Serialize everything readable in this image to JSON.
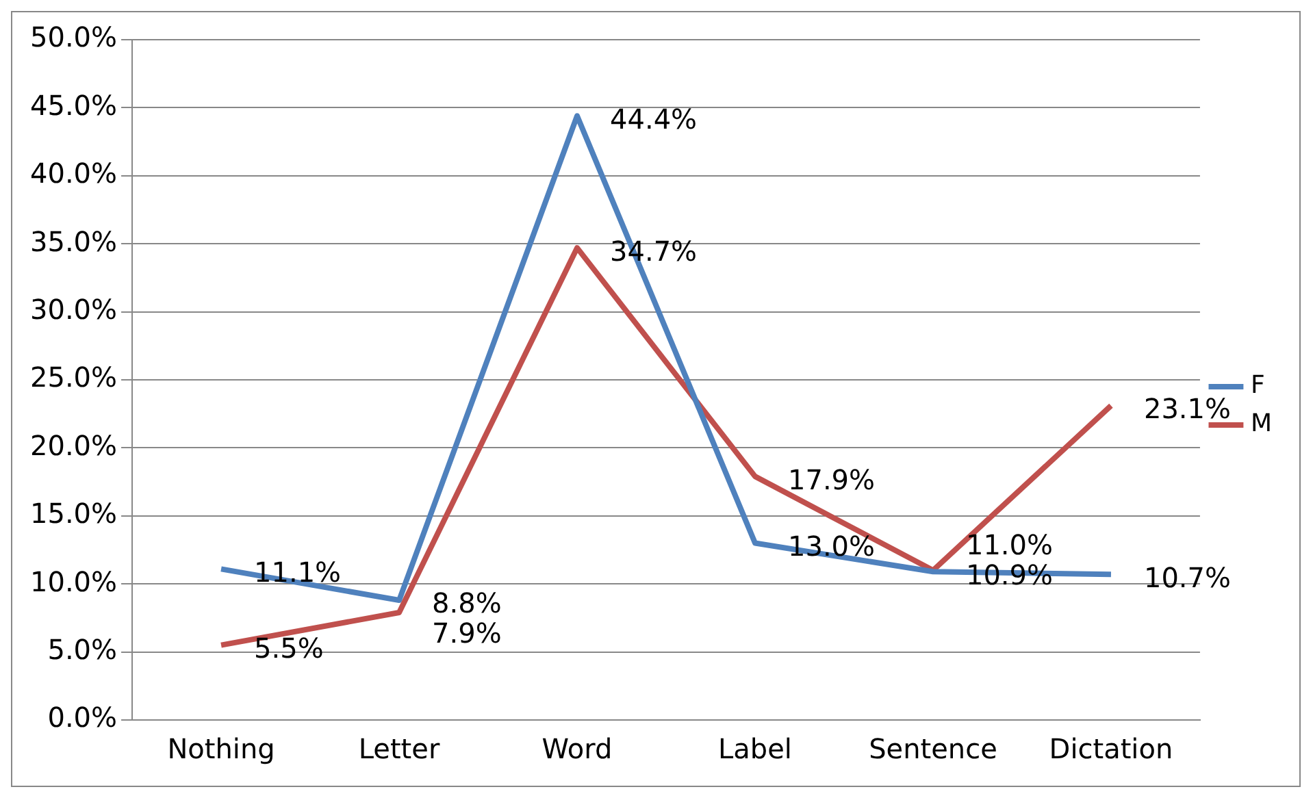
{
  "chart_data": {
    "type": "line",
    "categories": [
      "Nothing",
      "Letter",
      "Word",
      "Label",
      "Sentence",
      "Dictation"
    ],
    "series": [
      {
        "name": "F",
        "color": "#4f81bd",
        "values": [
          11.1,
          8.8,
          44.4,
          13.0,
          10.9,
          10.7
        ],
        "value_labels": [
          "11.1%",
          "8.8%",
          "44.4%",
          "13.0%",
          "10.9%",
          "10.7%"
        ]
      },
      {
        "name": "M",
        "color": "#c0504d",
        "values": [
          5.5,
          7.9,
          34.7,
          17.9,
          11.0,
          23.1
        ],
        "value_labels": [
          "5.5%",
          "7.9%",
          "34.7%",
          "17.9%",
          "11.0%",
          "23.1%"
        ]
      }
    ],
    "ylim": [
      0,
      50
    ],
    "yticks": [
      {
        "value": 0,
        "label": "0.0%"
      },
      {
        "value": 5,
        "label": "5.0%"
      },
      {
        "value": 10,
        "label": "10.0%"
      },
      {
        "value": 15,
        "label": "15.0%"
      },
      {
        "value": 20,
        "label": "20.0%"
      },
      {
        "value": 25,
        "label": "25.0%"
      },
      {
        "value": 30,
        "label": "30.0%"
      },
      {
        "value": 35,
        "label": "35.0%"
      },
      {
        "value": 40,
        "label": "40.0%"
      },
      {
        "value": 45,
        "label": "45.0%"
      },
      {
        "value": 50,
        "label": "50.0%"
      }
    ],
    "grid": "y",
    "legend": "right",
    "marker": "none",
    "line_style": "solid"
  }
}
